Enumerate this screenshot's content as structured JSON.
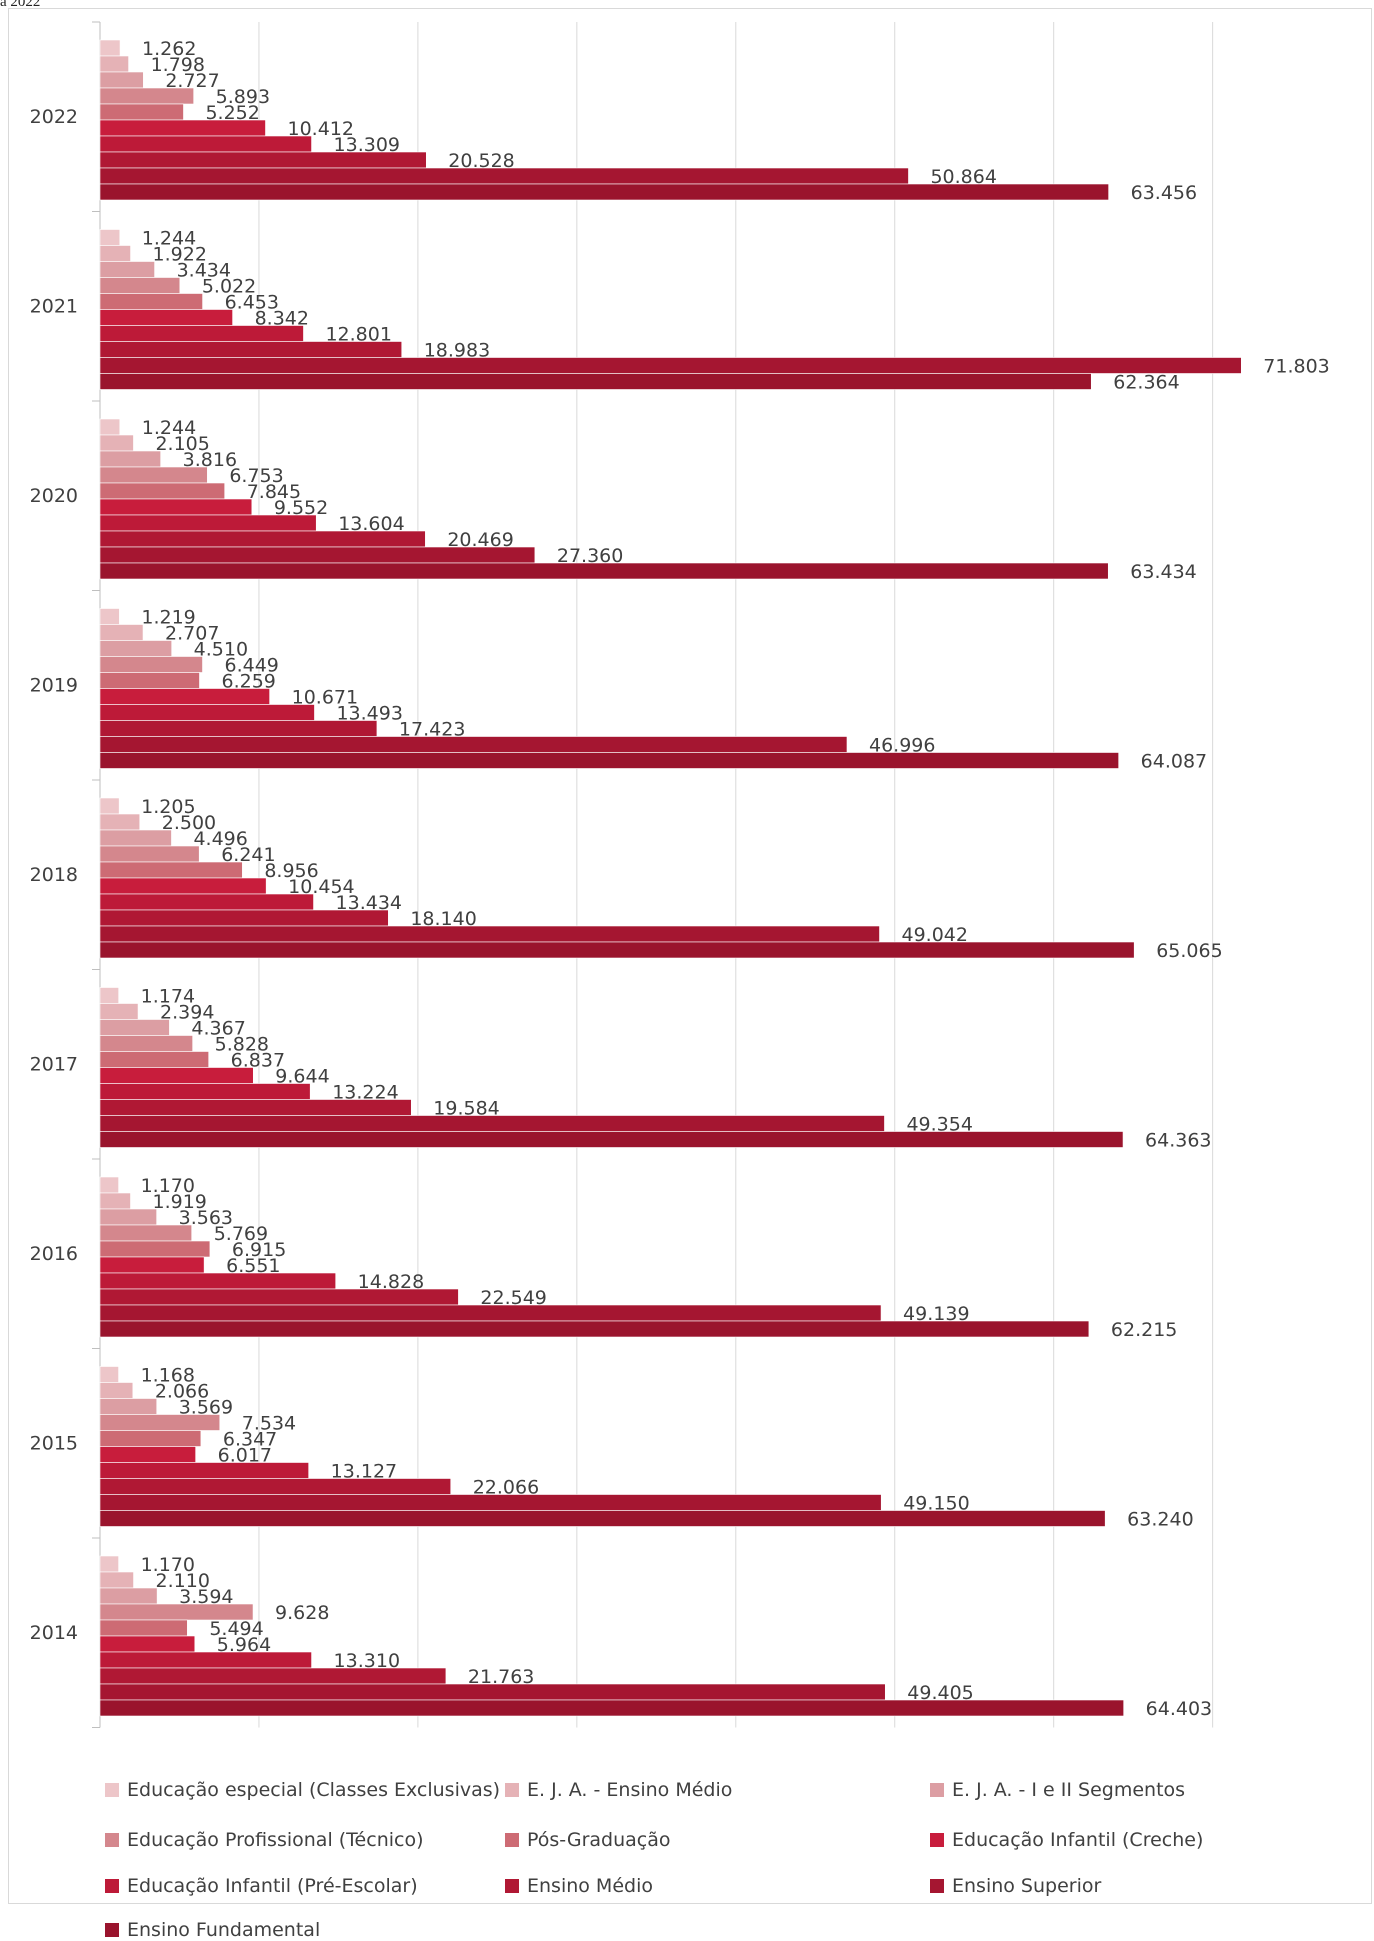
{
  "header_fragment": "á 2022",
  "chart_data": {
    "type": "bar",
    "orientation": "horizontal",
    "categories": [
      "2022",
      "2021",
      "2020",
      "2019",
      "2018",
      "2017",
      "2016",
      "2015",
      "2014"
    ],
    "xlim": [
      0,
      80000
    ],
    "grid": true,
    "legend_position": "bottom",
    "series": [
      {
        "name": "Educação especial (Classes Exclusivas)",
        "color": "#edc6c9",
        "values": [
          1262,
          1244,
          1244,
          1219,
          1205,
          1174,
          1170,
          1168,
          1170
        ],
        "labels": [
          "1.262",
          "1.244",
          "1.244",
          "1.219",
          "1.205",
          "1.174",
          "1.170",
          "1.168",
          "1.170"
        ]
      },
      {
        "name": "E. J. A. - Ensino Médio",
        "color": "#e5b2b6",
        "values": [
          1798,
          1922,
          2105,
          2707,
          2500,
          2394,
          1919,
          2066,
          2110
        ],
        "labels": [
          "1.798",
          "1.922",
          "2.105",
          "2.707",
          "2.500",
          "2.394",
          "1.919",
          "2.066",
          "2.110"
        ]
      },
      {
        "name": "E. J. A. - I e II Segmentos",
        "color": "#dc9ea3",
        "values": [
          2727,
          3434,
          3816,
          4510,
          4496,
          4367,
          3563,
          3569,
          3594
        ],
        "labels": [
          "2.727",
          "3.434",
          "3.816",
          "4.510",
          "4.496",
          "4.367",
          "3.563",
          "3.569",
          "3.594"
        ]
      },
      {
        "name": "Educação Profissional (Técnico)",
        "color": "#d4878d",
        "values": [
          5893,
          5022,
          6753,
          6449,
          6241,
          5828,
          5769,
          7534,
          9628
        ],
        "labels": [
          "5.893",
          "5.022",
          "6.753",
          "6.449",
          "6.241",
          "5.828",
          "5.769",
          "7.534",
          "9.628"
        ]
      },
      {
        "name": "Pós-Graduação",
        "color": "#cd6b74",
        "values": [
          5252,
          6453,
          7845,
          6259,
          8956,
          6837,
          6915,
          6347,
          5494
        ],
        "labels": [
          "5.252",
          "6.453",
          "7.845",
          "6.259",
          "8.956",
          "6.837",
          "6.915",
          "6.347",
          "5.494"
        ]
      },
      {
        "name": "Educação Infantil (Creche)",
        "color": "#c81d3c",
        "values": [
          10412,
          8342,
          9552,
          10671,
          10454,
          9644,
          6551,
          6017,
          5964
        ],
        "labels": [
          "10.412",
          "8.342",
          "9.552",
          "10.671",
          "10.454",
          "9.644",
          "6.551",
          "6.017",
          "5.964"
        ]
      },
      {
        "name": "Educação Infantil (Pré-Escolar)",
        "color": "#bd1a38",
        "values": [
          13309,
          12801,
          13604,
          13493,
          13434,
          13224,
          14828,
          13127,
          13310
        ],
        "labels": [
          "13.309",
          "12.801",
          "13.604",
          "13.493",
          "13.434",
          "13.224",
          "14.828",
          "13.127",
          "13.310"
        ]
      },
      {
        "name": "Ensino Médio",
        "color": "#b01834",
        "values": [
          20528,
          18983,
          20469,
          17423,
          18140,
          19584,
          22549,
          22066,
          21763
        ],
        "labels": [
          "20.528",
          "18.983",
          "20.469",
          "17.423",
          "18.140",
          "19.584",
          "22.549",
          "22.066",
          "21.763"
        ]
      },
      {
        "name": "Ensino Superior",
        "color": "#a51631",
        "values": [
          50864,
          71803,
          27360,
          46996,
          49042,
          49354,
          49139,
          49150,
          49405
        ],
        "labels": [
          "50.864",
          "71.803",
          "27.360",
          "46.996",
          "49.042",
          "49.354",
          "49.139",
          "49.150",
          "49.405"
        ]
      },
      {
        "name": "Ensino Fundamental",
        "color": "#9a142d",
        "values": [
          63456,
          62364,
          63434,
          64087,
          65065,
          64363,
          62215,
          63240,
          64403
        ],
        "labels": [
          "63.456",
          "62.364",
          "63.434",
          "64.087",
          "65.065",
          "64.363",
          "62.215",
          "63.240",
          "64.403"
        ]
      }
    ]
  }
}
